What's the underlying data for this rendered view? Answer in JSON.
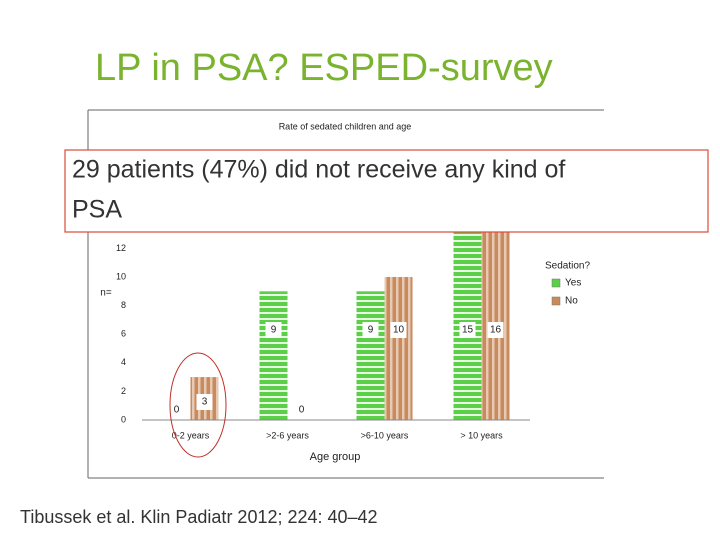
{
  "slide": {
    "title": "LP in PSA? ESPED-survey",
    "callout": [
      "29 patients (47%) did not receive any kind of",
      "PSA"
    ],
    "citation": "Tibussek et al. Klin Padiatr 2012; 224: 40–42"
  },
  "chart_data": {
    "type": "bar",
    "title": "Rate of sedated children and age",
    "y_label": "n=",
    "x_label": "Age group",
    "categories": [
      "0-2 years",
      ">2-6 years",
      ">6-10 years",
      "> 10 years"
    ],
    "series": [
      {
        "name": "Yes",
        "color": "#5ccf48",
        "values": [
          0,
          9,
          9,
          15
        ]
      },
      {
        "name": "No",
        "color": "#c98a5c",
        "values": [
          3,
          0,
          10,
          16
        ]
      }
    ],
    "legend_title": "Sedation?",
    "ylim": [
      0,
      20
    ],
    "yticks": [
      0,
      2,
      4,
      6,
      8,
      10,
      12
    ]
  }
}
